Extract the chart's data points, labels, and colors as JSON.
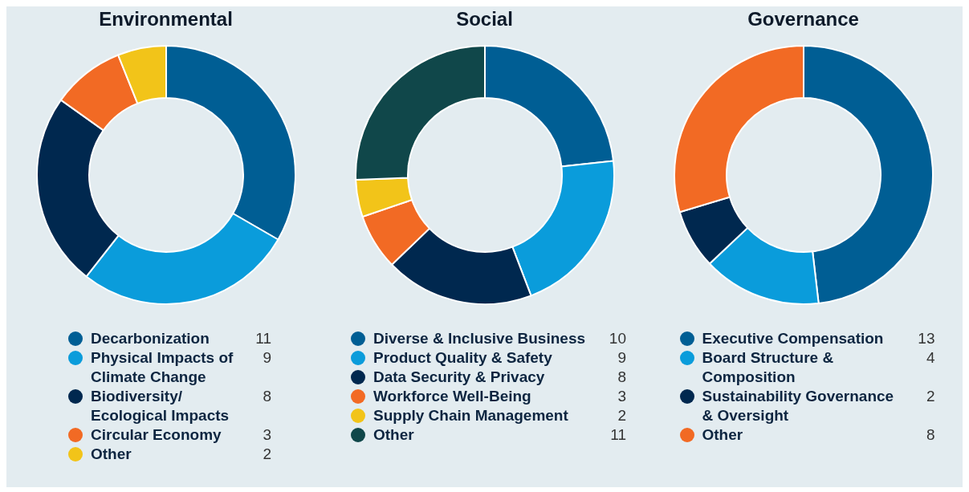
{
  "chart_data": [
    {
      "type": "donut",
      "title": "Environmental",
      "categories": [
        "Decarbonization",
        "Physical Impacts of Climate Change",
        "Biodiversity/ Ecological Impacts",
        "Circular Economy",
        "Other"
      ],
      "values": [
        11,
        9,
        8,
        3,
        2
      ],
      "colors": [
        "#005e94",
        "#0a9cdb",
        "#00284f",
        "#f26a24",
        "#f2c419"
      ],
      "data_labels": true,
      "legend": "bottom"
    },
    {
      "type": "donut",
      "title": "Social",
      "categories": [
        "Diverse & Inclusive Business",
        "Product Quality & Safety",
        "Data Security & Privacy",
        "Workforce Well-Being",
        "Supply Chain Management",
        "Other"
      ],
      "values": [
        10,
        9,
        8,
        3,
        2,
        11
      ],
      "colors": [
        "#005e94",
        "#0a9cdb",
        "#00284f",
        "#f26a24",
        "#f2c419",
        "#10474a"
      ],
      "data_labels": true,
      "legend": "bottom"
    },
    {
      "type": "donut",
      "title": "Governance",
      "categories": [
        "Executive Compensation",
        "Board Structure & Composition",
        "Sustainability Governance & Oversight",
        "Other"
      ],
      "values": [
        13,
        4,
        2,
        8
      ],
      "colors": [
        "#005e94",
        "#0a9cdb",
        "#00284f",
        "#f26a24"
      ],
      "data_labels": true,
      "legend": "bottom"
    }
  ]
}
